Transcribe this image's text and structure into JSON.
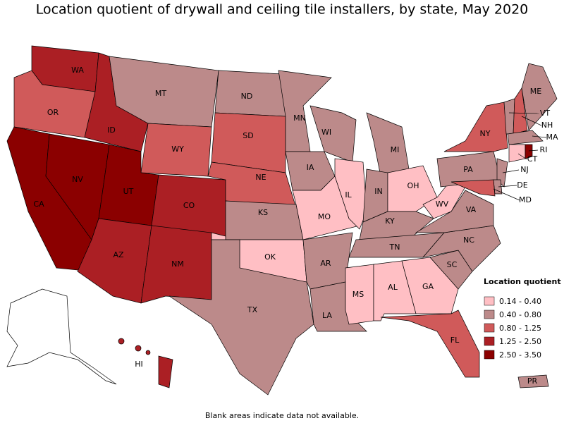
{
  "title": "Location quotient of drywall and ceiling tile installers, by state, May 2020",
  "legend_title": "Location quotient",
  "legend": [
    {
      "label": "0.14 - 0.40",
      "color": "#ffbfc4"
    },
    {
      "label": "0.40 - 0.80",
      "color": "#bc8a8a"
    },
    {
      "label": "0.80 - 1.25",
      "color": "#d05a5a"
    },
    {
      "label": "1.25 - 2.50",
      "color": "#ab1f24"
    },
    {
      "label": "2.50 - 3.50",
      "color": "#8b0000"
    }
  ],
  "states": [
    {
      "abbr": "WA",
      "color": "#ab1f24"
    },
    {
      "abbr": "OR",
      "color": "#d05a5a"
    },
    {
      "abbr": "CA",
      "color": "#8b0000"
    },
    {
      "abbr": "NV",
      "color": "#8b0000"
    },
    {
      "abbr": "ID",
      "color": "#ab1f24"
    },
    {
      "abbr": "MT",
      "color": "#bc8a8a"
    },
    {
      "abbr": "WY",
      "color": "#d05a5a"
    },
    {
      "abbr": "UT",
      "color": "#8b0000"
    },
    {
      "abbr": "AZ",
      "color": "#ab1f24"
    },
    {
      "abbr": "CO",
      "color": "#ab1f24"
    },
    {
      "abbr": "NM",
      "color": "#ab1f24"
    },
    {
      "abbr": "ND",
      "color": "#bc8a8a"
    },
    {
      "abbr": "SD",
      "color": "#d05a5a"
    },
    {
      "abbr": "NE",
      "color": "#d05a5a"
    },
    {
      "abbr": "KS",
      "color": "#bc8a8a"
    },
    {
      "abbr": "OK",
      "color": "#ffbfc4"
    },
    {
      "abbr": "TX",
      "color": "#bc8a8a"
    },
    {
      "abbr": "MN",
      "color": "#bc8a8a"
    },
    {
      "abbr": "IA",
      "color": "#bc8a8a"
    },
    {
      "abbr": "MO",
      "color": "#ffbfc4"
    },
    {
      "abbr": "AR",
      "color": "#bc8a8a"
    },
    {
      "abbr": "LA",
      "color": "#bc8a8a"
    },
    {
      "abbr": "WI",
      "color": "#bc8a8a"
    },
    {
      "abbr": "IL",
      "color": "#ffbfc4"
    },
    {
      "abbr": "MI",
      "color": "#bc8a8a"
    },
    {
      "abbr": "IN",
      "color": "#bc8a8a"
    },
    {
      "abbr": "OH",
      "color": "#ffbfc4"
    },
    {
      "abbr": "KY",
      "color": "#bc8a8a"
    },
    {
      "abbr": "TN",
      "color": "#bc8a8a"
    },
    {
      "abbr": "MS",
      "color": "#ffbfc4"
    },
    {
      "abbr": "AL",
      "color": "#ffbfc4"
    },
    {
      "abbr": "GA",
      "color": "#ffbfc4"
    },
    {
      "abbr": "FL",
      "color": "#d05a5a"
    },
    {
      "abbr": "SC",
      "color": "#bc8a8a"
    },
    {
      "abbr": "NC",
      "color": "#bc8a8a"
    },
    {
      "abbr": "VA",
      "color": "#bc8a8a"
    },
    {
      "abbr": "WV",
      "color": "#ffbfc4"
    },
    {
      "abbr": "PA",
      "color": "#bc8a8a"
    },
    {
      "abbr": "NY",
      "color": "#d05a5a"
    },
    {
      "abbr": "NJ",
      "color": "#bc8a8a"
    },
    {
      "abbr": "DE",
      "color": "#bc8a8a"
    },
    {
      "abbr": "MD",
      "color": "#d05a5a"
    },
    {
      "abbr": "VT",
      "color": "#bc8a8a"
    },
    {
      "abbr": "NH",
      "color": "#d05a5a"
    },
    {
      "abbr": "ME",
      "color": "#bc8a8a"
    },
    {
      "abbr": "MA",
      "color": "#bc8a8a"
    },
    {
      "abbr": "CT",
      "color": "#ffbfc4"
    },
    {
      "abbr": "RI",
      "color": "#8b0000"
    },
    {
      "abbr": "HI",
      "color": "#ab1f24"
    },
    {
      "abbr": "PR",
      "color": "#bc8a8a"
    }
  ],
  "footnote": "Blank areas indicate data not available."
}
